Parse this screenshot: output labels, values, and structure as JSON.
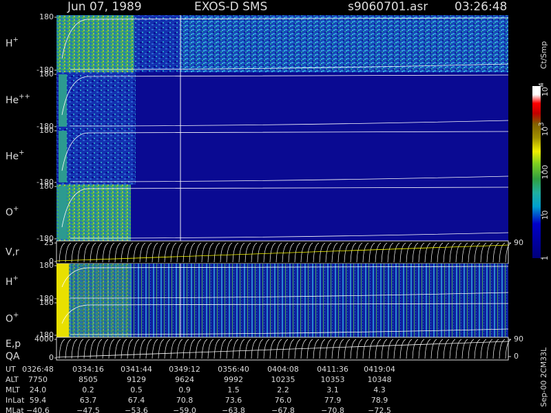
{
  "header": {
    "date": "Jun 07, 1989",
    "instrument": "EXOS-D SMS",
    "file": "s9060701.asr",
    "time": "03:26:48"
  },
  "chart_data": [
    {
      "type": "spectrogram",
      "label": {
        "base": "H",
        "sup": "+"
      },
      "ylim": [
        -180,
        180
      ],
      "yticks": [
        -180,
        180
      ]
    },
    {
      "type": "spectrogram",
      "label": {
        "base": "He",
        "sup": "++"
      },
      "ylim": [
        -180,
        180
      ],
      "yticks": [
        -180,
        180
      ]
    },
    {
      "type": "spectrogram",
      "label": {
        "base": "He",
        "sup": "+"
      },
      "ylim": [
        -180,
        180
      ],
      "yticks": [
        -180,
        180
      ]
    },
    {
      "type": "spectrogram",
      "label": {
        "base": "O",
        "sup": "+"
      },
      "ylim": [
        -180,
        180
      ],
      "yticks": [
        -180,
        180
      ]
    },
    {
      "type": "trace",
      "label": {
        "base": "V,r"
      },
      "ylim": [
        0,
        25
      ],
      "yticks": [
        0,
        25
      ],
      "y2lim": [
        0,
        90
      ],
      "y2ticks": [
        90
      ]
    },
    {
      "type": "spectrogram",
      "label": {
        "base": "H",
        "sup": "+"
      },
      "ylim": [
        -180,
        180
      ],
      "yticks": [
        -180,
        180
      ]
    },
    {
      "type": "spectrogram",
      "label": {
        "base": "O",
        "sup": "+"
      },
      "ylim": [
        -180,
        180
      ],
      "yticks": [
        -180,
        180
      ]
    },
    {
      "type": "trace",
      "label": {
        "base": "E,p",
        "line2": "QA"
      },
      "ylim": [
        0,
        4000
      ],
      "yticks": [
        0,
        4000
      ],
      "y2lim": [
        0,
        90
      ],
      "y2ticks": [
        0,
        90
      ]
    }
  ],
  "colorbar": {
    "unit": "Ct/Smp",
    "ticks": [
      {
        "value": 1,
        "base": "1"
      },
      {
        "value": 10,
        "base": "10"
      },
      {
        "value": 100,
        "base": "100"
      },
      {
        "value": 1000,
        "base": "10",
        "sup": "3"
      },
      {
        "value": 10000,
        "base": "10",
        "sup": "4"
      }
    ]
  },
  "footer": {
    "rows": [
      {
        "name": "UT",
        "cells": [
          "0326:48",
          "0334:16",
          "0341:44",
          "0349:12",
          "0356:40",
          "0404:08",
          "0411:36",
          "0419:04"
        ]
      },
      {
        "name": "ALT",
        "cells": [
          "7750",
          "8505",
          "9129",
          "9624",
          "9992",
          "10235",
          "10353",
          "10348"
        ]
      },
      {
        "name": "MLT",
        "cells": [
          "24.0",
          "0.2",
          "0.5",
          "0.9",
          "1.5",
          "2.2",
          "3.1",
          "4.3"
        ]
      },
      {
        "name": "InLat",
        "cells": [
          "59.4",
          "63.7",
          "67.4",
          "70.8",
          "73.6",
          "76.0",
          "77.9",
          "78.9"
        ]
      },
      {
        "name": "MLat",
        "cells": [
          "−40.6",
          "−47.5",
          "−53.6",
          "−59.0",
          "−63.8",
          "−67.8",
          "−70.8",
          "−72.5"
        ]
      }
    ],
    "version": "Sep-00 2CM33L"
  }
}
